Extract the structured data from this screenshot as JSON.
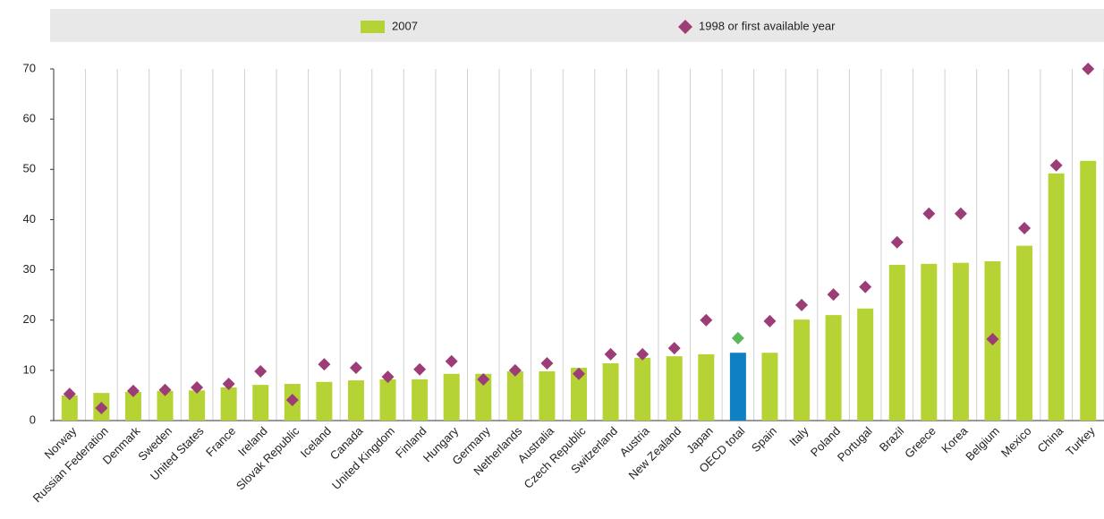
{
  "chart_data": {
    "type": "bar",
    "categories": [
      "Norway",
      "Russian Federation",
      "Denmark",
      "Sweden",
      "United States",
      "France",
      "Ireland",
      "Slovak Republic",
      "Iceland",
      "Canada",
      "United Kingdom",
      "Finland",
      "Hungary",
      "Germany",
      "Netherlands",
      "Australia",
      "Czech Republic",
      "Switzerland",
      "Austria",
      "New Zealand",
      "Japan",
      "OECD total",
      "Spain",
      "Italy",
      "Poland",
      "Portugal",
      "Brazil",
      "Greece",
      "Korea",
      "Belgium",
      "Mexico",
      "China",
      "Turkey"
    ],
    "series": [
      {
        "name": "2007",
        "kind": "bar",
        "color": "#b5d334",
        "highlight_color": "#0f80c1",
        "values": [
          5.0,
          5.5,
          5.7,
          5.9,
          6.0,
          6.6,
          7.1,
          7.3,
          7.7,
          8.0,
          8.2,
          8.2,
          9.3,
          9.3,
          9.8,
          9.8,
          10.5,
          11.4,
          12.5,
          12.8,
          13.2,
          13.5,
          13.5,
          20.1,
          21.0,
          22.3,
          31.0,
          31.2,
          31.4,
          31.7,
          34.8,
          49.2,
          51.7
        ]
      },
      {
        "name": "1998 or first available year",
        "kind": "diamond",
        "color": "#9c3d77",
        "highlight_color": "#5cb85c",
        "values": [
          5.3,
          2.5,
          5.9,
          6.1,
          6.6,
          7.3,
          9.8,
          4.1,
          11.2,
          10.5,
          8.7,
          10.2,
          11.8,
          8.2,
          10.0,
          11.4,
          9.3,
          13.2,
          13.2,
          14.4,
          20.0,
          16.4,
          19.8,
          23.0,
          25.1,
          26.6,
          35.5,
          41.2,
          41.2,
          16.2,
          38.3,
          50.8,
          70.0
        ]
      }
    ],
    "highlight": {
      "category": "OECD total"
    },
    "ylim": [
      0,
      70
    ],
    "yticks": [
      0,
      10,
      20,
      30,
      40,
      50,
      60,
      70
    ],
    "legend": "top"
  }
}
